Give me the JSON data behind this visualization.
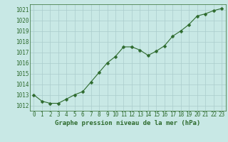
{
  "x": [
    0,
    1,
    2,
    3,
    4,
    5,
    6,
    7,
    8,
    9,
    10,
    11,
    12,
    13,
    14,
    15,
    16,
    17,
    18,
    19,
    20,
    21,
    22,
    23
  ],
  "y": [
    1013.0,
    1012.4,
    1012.2,
    1012.2,
    1012.6,
    1013.0,
    1013.3,
    1014.2,
    1015.1,
    1016.0,
    1016.6,
    1017.5,
    1017.5,
    1017.2,
    1016.7,
    1017.1,
    1017.6,
    1018.5,
    1019.0,
    1019.6,
    1020.4,
    1020.6,
    1020.9,
    1021.1
  ],
  "line_color": "#2d6a2d",
  "marker": "D",
  "marker_size": 2.5,
  "bg_color": "#c8e8e5",
  "grid_color": "#aacccc",
  "title": "Graphe pression niveau de la mer (hPa)",
  "xlim": [
    -0.5,
    23.5
  ],
  "ylim": [
    1011.5,
    1021.5
  ],
  "yticks": [
    1012,
    1013,
    1014,
    1015,
    1016,
    1017,
    1018,
    1019,
    1020,
    1021
  ],
  "xticks": [
    0,
    1,
    2,
    3,
    4,
    5,
    6,
    7,
    8,
    9,
    10,
    11,
    12,
    13,
    14,
    15,
    16,
    17,
    18,
    19,
    20,
    21,
    22,
    23
  ],
  "tick_fontsize": 5.5,
  "title_fontsize": 6.5,
  "line_width": 0.8
}
